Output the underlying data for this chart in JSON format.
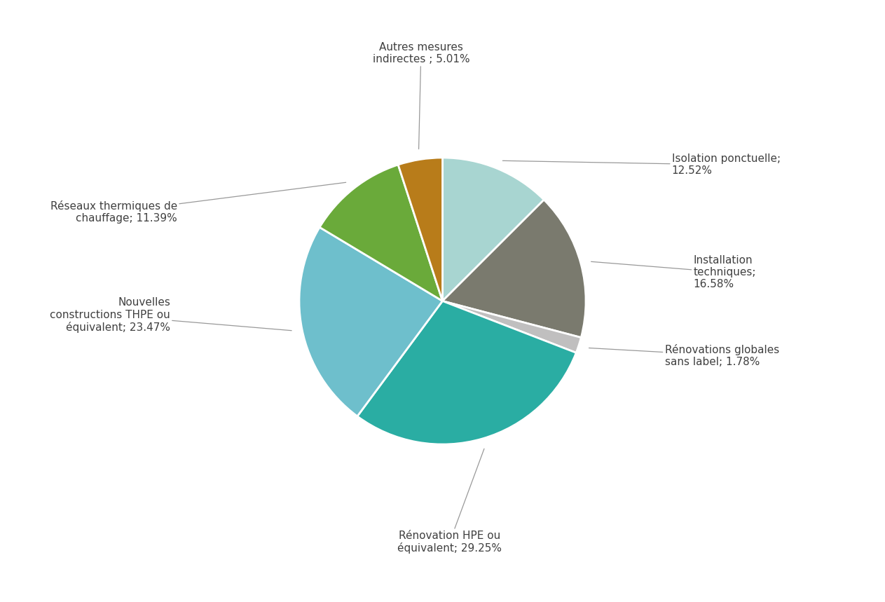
{
  "labels": [
    "Isolation ponctuelle;\n12.52%",
    "Installation\ntechniques;\n16.58%",
    "Rénovations globales\nsans label; 1.78%",
    "Rénovation HPE ou\néquivalent; 29.25%",
    "Nouvelles\nconstructions THPE ou\néquivalent; 23.47%",
    "Réseaux thermiques de\nchauffage; 11.39%",
    "Autres mesures\nindirectes ; 5.01%"
  ],
  "values": [
    12.52,
    16.58,
    1.78,
    29.25,
    23.47,
    11.39,
    5.01
  ],
  "colors": [
    "#a8d5d1",
    "#7a7a6e",
    "#c0bfbf",
    "#2aada3",
    "#6ebfcc",
    "#6aaa3a",
    "#b87c1a"
  ],
  "startangle": 90,
  "background_color": "#ffffff",
  "text_color": "#404040",
  "font_size": 11,
  "label_positions": [
    {
      "textxy": [
        0.72,
        0.87
      ],
      "ha": "left",
      "va": "center"
    },
    {
      "textxy": [
        0.8,
        0.5
      ],
      "ha": "left",
      "va": "center"
    },
    {
      "textxy": [
        0.75,
        0.32
      ],
      "ha": "left",
      "va": "center"
    },
    {
      "textxy": [
        0.38,
        0.04
      ],
      "ha": "center",
      "va": "top"
    },
    {
      "textxy": [
        0.03,
        0.38
      ],
      "ha": "left",
      "va": "center"
    },
    {
      "textxy": [
        0.05,
        0.64
      ],
      "ha": "left",
      "va": "center"
    },
    {
      "textxy": [
        0.3,
        0.92
      ],
      "ha": "center",
      "va": "bottom"
    }
  ]
}
